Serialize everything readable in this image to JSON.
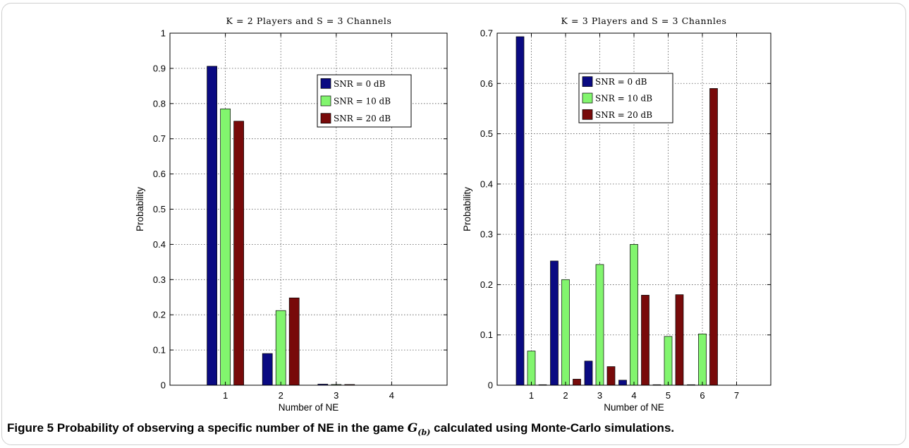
{
  "chart_data": [
    {
      "type": "bar",
      "title": "K = 2 Players and S = 3 Channels",
      "xlabel": "Number of NE",
      "ylabel": "Probability",
      "categories": [
        "1",
        "2",
        "3",
        "4"
      ],
      "ylim": [
        0,
        1
      ],
      "yticks": [
        "0",
        "0.1",
        "0.2",
        "0.3",
        "0.4",
        "0.5",
        "0.6",
        "0.7",
        "0.8",
        "0.9",
        "1"
      ],
      "grid": true,
      "legend_position": "top-right",
      "series": [
        {
          "name": "SNR = 0 dB",
          "color": "#0a0a82",
          "values": [
            0.906,
            0.09,
            0.003,
            0
          ]
        },
        {
          "name": "SNR = 10 dB",
          "color": "#82f56e",
          "values": [
            0.785,
            0.212,
            0.002,
            0
          ]
        },
        {
          "name": "SNR = 20 dB",
          "color": "#780a0a",
          "values": [
            0.75,
            0.248,
            0.002,
            0
          ]
        }
      ]
    },
    {
      "type": "bar",
      "title": "K = 3 Players and S = 3 Channles",
      "xlabel": "Number of NE",
      "ylabel": "Probability",
      "categories": [
        "1",
        "2",
        "3",
        "4",
        "5",
        "6",
        "7"
      ],
      "ylim": [
        0,
        0.7
      ],
      "yticks": [
        "0",
        "0.1",
        "0.2",
        "0.3",
        "0.4",
        "0.5",
        "0.6",
        "0.7"
      ],
      "grid": true,
      "legend_position": "top-left",
      "series": [
        {
          "name": "SNR = 0 dB",
          "color": "#0a0a82",
          "values": [
            0.693,
            0.247,
            0.048,
            0.01,
            0.001,
            0.001,
            0
          ]
        },
        {
          "name": "SNR = 10 dB",
          "color": "#82f56e",
          "values": [
            0.068,
            0.21,
            0.24,
            0.28,
            0.097,
            0.102,
            0
          ]
        },
        {
          "name": "SNR = 20 dB",
          "color": "#780a0a",
          "values": [
            0.001,
            0.012,
            0.037,
            0.179,
            0.18,
            0.59,
            0
          ]
        }
      ]
    }
  ],
  "caption": {
    "label": "Figure 5",
    "text_before": "Probability of observing a specific number of NE in the game",
    "math_main": "G",
    "math_sub": "(b)",
    "text_after": "calculated using Monte-Carlo simulations."
  }
}
